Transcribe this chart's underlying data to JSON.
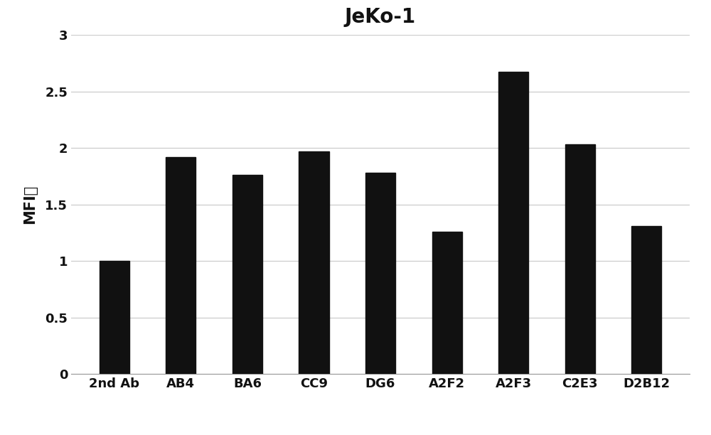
{
  "title": "JeKo-1",
  "ylabel": "MFI比",
  "categories": [
    "2nd Ab",
    "AB4",
    "BA6",
    "CC9",
    "DG6",
    "A2F2",
    "A2F3",
    "C2E3",
    "D2B12"
  ],
  "values": [
    1.0,
    1.92,
    1.76,
    1.97,
    1.78,
    1.26,
    2.67,
    2.03,
    1.31
  ],
  "bar_color": "#111111",
  "background_color": "#ffffff",
  "ylim": [
    0,
    3.0
  ],
  "yticks": [
    0,
    0.5,
    1.0,
    1.5,
    2.0,
    2.5,
    3.0
  ],
  "ytick_labels": [
    "0",
    "0.5",
    "1",
    "1.5",
    "2",
    "2.5",
    "3"
  ],
  "title_fontsize": 20,
  "ylabel_fontsize": 15,
  "tick_fontsize": 13,
  "bar_width": 0.45,
  "grid_color": "#cccccc",
  "grid_linewidth": 0.9
}
